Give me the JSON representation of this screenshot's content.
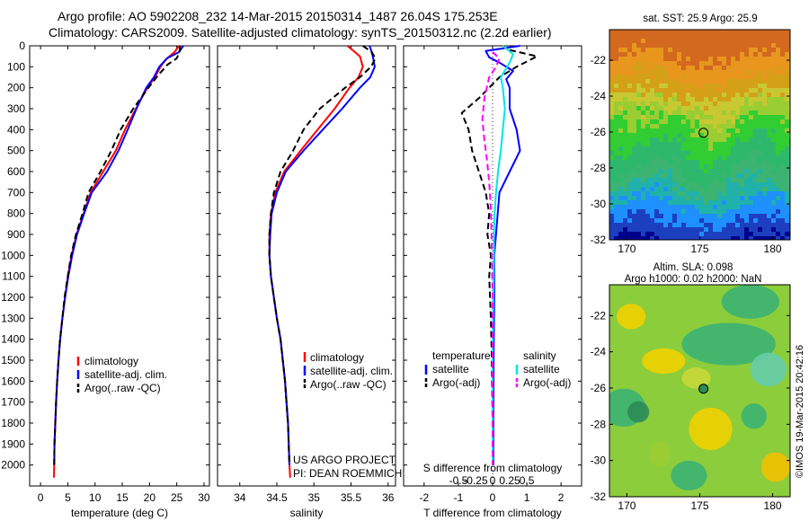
{
  "header": {
    "line1": "Argo profile: AO 5902208_232 14-Mar-2015 20150314_1487 26.04S 175.253E",
    "line2": "Climatology: CARS2009. Satellite-adjusted climatology: synTS_20150312.nc (2.2d earlier)"
  },
  "credit": "US ARGO PROJECT",
  "pi": "PI: DEAN ROEMMICH",
  "side_stamp": "©IMOS 19-Mar-2015 20:42:16",
  "colors": {
    "climatology": "#ff0000",
    "satellite": "#0000ff",
    "argo": "#000000",
    "t_diff_satellite": "#0000ff",
    "s_diff_satellite": "#00e5e5",
    "s_diff_argo": "#ff00ff"
  },
  "chart_data": [
    {
      "type": "line",
      "id": "temperature",
      "xlabel": "temperature (deg C)",
      "ylabel": "",
      "xlim": [
        -2,
        31
      ],
      "ylim": [
        2100,
        0
      ],
      "xticks": [
        0,
        5,
        10,
        15,
        20,
        25,
        30
      ],
      "yticks": [
        0,
        100,
        200,
        300,
        400,
        500,
        600,
        700,
        800,
        900,
        1000,
        1100,
        1200,
        1300,
        1400,
        1500,
        1600,
        1700,
        1800,
        1900,
        2000
      ],
      "legend": [
        "climatology",
        "satellite-adj. clim.",
        "Argo(..raw -QC)"
      ],
      "series": [
        {
          "name": "climatology",
          "style": "solid",
          "points": [
            [
              25.4,
              0
            ],
            [
              24.6,
              30
            ],
            [
              23.2,
              60
            ],
            [
              22.0,
              100
            ],
            [
              21.0,
              150
            ],
            [
              19.6,
              200
            ],
            [
              17.5,
              300
            ],
            [
              15.5,
              400
            ],
            [
              13.8,
              500
            ],
            [
              11.5,
              600
            ],
            [
              9.2,
              700
            ],
            [
              7.9,
              800
            ],
            [
              6.6,
              900
            ],
            [
              5.7,
              1000
            ],
            [
              5.0,
              1100
            ],
            [
              4.5,
              1200
            ],
            [
              4.0,
              1300
            ],
            [
              3.6,
              1400
            ],
            [
              3.3,
              1500
            ],
            [
              3.05,
              1600
            ],
            [
              2.85,
              1700
            ],
            [
              2.7,
              1800
            ],
            [
              2.55,
              1900
            ],
            [
              2.5,
              2000
            ],
            [
              2.45,
              2060
            ]
          ]
        },
        {
          "name": "satellite-adj. clim.",
          "style": "solid",
          "points": [
            [
              26.2,
              0
            ],
            [
              25.4,
              30
            ],
            [
              23.2,
              60
            ],
            [
              21.8,
              100
            ],
            [
              20.8,
              150
            ],
            [
              19.4,
              200
            ],
            [
              17.6,
              300
            ],
            [
              16.0,
              400
            ],
            [
              14.3,
              500
            ],
            [
              12.2,
              600
            ],
            [
              9.4,
              700
            ],
            [
              8.0,
              800
            ],
            [
              6.7,
              900
            ],
            [
              5.8,
              1000
            ],
            [
              5.1,
              1100
            ],
            [
              4.5,
              1200
            ],
            [
              4.0,
              1300
            ],
            [
              3.6,
              1400
            ],
            [
              3.3,
              1500
            ],
            [
              3.05,
              1600
            ],
            [
              2.85,
              1700
            ],
            [
              2.7,
              1800
            ],
            [
              2.55,
              1900
            ],
            [
              2.5,
              2000
            ]
          ]
        },
        {
          "name": "Argo(..raw -QC)",
          "style": "dashed",
          "points": [
            [
              25.6,
              0
            ],
            [
              25.5,
              30
            ],
            [
              25.0,
              60
            ],
            [
              23.3,
              90
            ],
            [
              21.6,
              140
            ],
            [
              19.8,
              200
            ],
            [
              17.0,
              300
            ],
            [
              14.7,
              400
            ],
            [
              13.0,
              500
            ],
            [
              11.0,
              600
            ],
            [
              8.8,
              700
            ],
            [
              7.7,
              800
            ],
            [
              6.5,
              900
            ],
            [
              5.6,
              1000
            ],
            [
              5.0,
              1100
            ],
            [
              4.4,
              1200
            ],
            [
              4.0,
              1300
            ],
            [
              3.6,
              1400
            ],
            [
              3.3,
              1500
            ],
            [
              3.05,
              1600
            ],
            [
              2.85,
              1700
            ],
            [
              2.7,
              1800
            ],
            [
              2.55,
              1900
            ],
            [
              2.5,
              2000
            ]
          ]
        }
      ]
    },
    {
      "type": "line",
      "id": "salinity",
      "xlabel": "salinity",
      "xlim": [
        33.7,
        36.1
      ],
      "ylim": [
        2100,
        0
      ],
      "xticks": [
        34,
        34.5,
        35,
        35.5,
        36
      ],
      "legend": [
        "climatology",
        "satellite-adj. clim.",
        "Argo(..raw -QC)"
      ],
      "series": [
        {
          "name": "climatology",
          "style": "solid",
          "points": [
            [
              35.45,
              0
            ],
            [
              35.52,
              20
            ],
            [
              35.62,
              50
            ],
            [
              35.66,
              100
            ],
            [
              35.6,
              150
            ],
            [
              35.48,
              200
            ],
            [
              35.28,
              300
            ],
            [
              35.05,
              400
            ],
            [
              34.82,
              500
            ],
            [
              34.6,
              600
            ],
            [
              34.48,
              700
            ],
            [
              34.42,
              800
            ],
            [
              34.4,
              900
            ],
            [
              34.4,
              1000
            ],
            [
              34.42,
              1100
            ],
            [
              34.46,
              1200
            ],
            [
              34.5,
              1300
            ],
            [
              34.55,
              1400
            ],
            [
              34.58,
              1500
            ],
            [
              34.61,
              1600
            ],
            [
              34.63,
              1700
            ],
            [
              34.65,
              1800
            ],
            [
              34.66,
              1900
            ],
            [
              34.67,
              2000
            ],
            [
              34.68,
              2060
            ]
          ]
        },
        {
          "name": "satellite-adj. clim.",
          "style": "solid",
          "points": [
            [
              35.75,
              0
            ],
            [
              35.78,
              30
            ],
            [
              35.8,
              60
            ],
            [
              35.82,
              100
            ],
            [
              35.76,
              150
            ],
            [
              35.62,
              200
            ],
            [
              35.38,
              300
            ],
            [
              35.12,
              400
            ],
            [
              34.86,
              500
            ],
            [
              34.62,
              600
            ],
            [
              34.5,
              700
            ],
            [
              34.43,
              800
            ],
            [
              34.41,
              900
            ],
            [
              34.4,
              1000
            ],
            [
              34.42,
              1100
            ],
            [
              34.46,
              1200
            ],
            [
              34.5,
              1300
            ],
            [
              34.55,
              1400
            ],
            [
              34.58,
              1500
            ],
            [
              34.61,
              1600
            ],
            [
              34.63,
              1700
            ],
            [
              34.65,
              1800
            ],
            [
              34.66,
              1900
            ],
            [
              34.67,
              2000
            ]
          ]
        },
        {
          "name": "Argo(..raw -QC)",
          "style": "dashed",
          "points": [
            [
              35.66,
              0
            ],
            [
              35.78,
              30
            ],
            [
              35.83,
              60
            ],
            [
              35.77,
              100
            ],
            [
              35.62,
              150
            ],
            [
              35.42,
              200
            ],
            [
              35.08,
              300
            ],
            [
              34.86,
              400
            ],
            [
              34.72,
              500
            ],
            [
              34.55,
              600
            ],
            [
              34.46,
              700
            ],
            [
              34.42,
              800
            ],
            [
              34.4,
              900
            ],
            [
              34.4,
              1000
            ],
            [
              34.42,
              1100
            ],
            [
              34.46,
              1200
            ],
            [
              34.5,
              1300
            ],
            [
              34.55,
              1400
            ],
            [
              34.58,
              1500
            ],
            [
              34.61,
              1600
            ],
            [
              34.63,
              1700
            ],
            [
              34.65,
              1800
            ],
            [
              34.66,
              1900
            ],
            [
              34.67,
              2000
            ]
          ]
        }
      ]
    },
    {
      "type": "line",
      "id": "differences",
      "title": "S difference from climatology",
      "xlabel": "T difference from climatology",
      "xlim": [
        -2.6,
        2.6
      ],
      "ylim": [
        2100,
        0
      ],
      "xticks": [
        -2,
        -1,
        0,
        1,
        2
      ],
      "xtick_labels": [
        "-2",
        "-1",
        "0",
        "1",
        "2"
      ],
      "xlim_top": [
        -1.3,
        1.3
      ],
      "xticks_top": [
        -0.5,
        -0.25,
        0,
        0.25,
        0.5
      ],
      "xtick_labels_top": [
        "-0.5",
        "-0.25",
        "0",
        "0.25",
        "0.5"
      ],
      "legend_groups": [
        {
          "heading": "temperature",
          "items": [
            "satellite",
            "Argo(-adj)"
          ]
        },
        {
          "heading": "salinity",
          "items": [
            "satellite",
            "Argo(-adj)"
          ]
        }
      ],
      "series": [
        {
          "name": "T satellite",
          "axis": "T",
          "style": "solid",
          "points": [
            [
              0.8,
              0
            ],
            [
              -0.2,
              25
            ],
            [
              -0.1,
              55
            ],
            [
              0.2,
              80
            ],
            [
              0.6,
              120
            ],
            [
              0.4,
              160
            ],
            [
              0.5,
              200
            ],
            [
              0.5,
              300
            ],
            [
              0.7,
              400
            ],
            [
              0.8,
              500
            ],
            [
              0.5,
              600
            ],
            [
              0.2,
              700
            ],
            [
              0.15,
              800
            ],
            [
              0.1,
              900
            ],
            [
              0.05,
              1000
            ],
            [
              0.05,
              1100
            ],
            [
              0.05,
              1200
            ],
            [
              0.03,
              1500
            ],
            [
              0.02,
              1800
            ],
            [
              0.02,
              2000
            ]
          ]
        },
        {
          "name": "T Argo(-adj)",
          "axis": "T",
          "style": "dashed",
          "points": [
            [
              0.5,
              20
            ],
            [
              1.3,
              50
            ],
            [
              0.7,
              100
            ],
            [
              0.2,
              150
            ],
            [
              -0.4,
              250
            ],
            [
              -0.9,
              320
            ],
            [
              -0.7,
              400
            ],
            [
              -0.6,
              500
            ],
            [
              -0.4,
              600
            ],
            [
              -0.2,
              700
            ],
            [
              -0.1,
              800
            ],
            [
              -0.15,
              900
            ],
            [
              -0.05,
              1000
            ],
            [
              -0.1,
              1100
            ],
            [
              -0.05,
              1300
            ],
            [
              -0.02,
              1500
            ],
            [
              0.0,
              1800
            ],
            [
              0.0,
              2000
            ]
          ]
        },
        {
          "name": "S satellite",
          "axis": "S",
          "style": "solid",
          "points": [
            [
              0.15,
              0
            ],
            [
              0.3,
              40
            ],
            [
              0.25,
              80
            ],
            [
              0.12,
              150
            ],
            [
              0.15,
              200
            ],
            [
              0.18,
              300
            ],
            [
              0.15,
              400
            ],
            [
              0.12,
              500
            ],
            [
              0.08,
              600
            ],
            [
              0.05,
              700
            ],
            [
              0.03,
              800
            ],
            [
              0.02,
              900
            ],
            [
              0.02,
              1000
            ],
            [
              0.01,
              1200
            ],
            [
              0.0,
              1500
            ],
            [
              0.0,
              1800
            ],
            [
              0.0,
              2000
            ]
          ]
        },
        {
          "name": "S Argo(-adj)",
          "axis": "S",
          "style": "dashed",
          "points": [
            [
              0.0,
              30
            ],
            [
              0.1,
              60
            ],
            [
              0.05,
              100
            ],
            [
              -0.05,
              150
            ],
            [
              -0.12,
              250
            ],
            [
              -0.15,
              350
            ],
            [
              -0.12,
              450
            ],
            [
              -0.08,
              550
            ],
            [
              -0.05,
              650
            ],
            [
              -0.03,
              750
            ],
            [
              -0.02,
              850
            ],
            [
              -0.01,
              1000
            ],
            [
              0.0,
              1200
            ],
            [
              0.0,
              1500
            ],
            [
              0.0,
              2000
            ]
          ]
        }
      ]
    },
    {
      "type": "heatmap",
      "id": "sst_map",
      "title": "sat. SST: 25.9 Argo: 25.9",
      "xticks": [
        170,
        175,
        180
      ],
      "yticks": [
        -22,
        -24,
        -26,
        -28,
        -30,
        -32
      ],
      "xlim": [
        168.8,
        181.2
      ],
      "ylim": [
        -32,
        -20.3
      ],
      "marker": {
        "lon": 175.253,
        "lat": -26.04
      }
    },
    {
      "type": "heatmap",
      "id": "sla_map",
      "title": "Altim. SLA: 0.098",
      "subtitle": "Argo h1000: 0.02 h2000: NaN",
      "xticks": [
        170,
        175,
        180
      ],
      "yticks": [
        -22,
        -24,
        -26,
        -28,
        -30,
        -32
      ],
      "xlim": [
        168.8,
        181.2
      ],
      "ylim": [
        -32,
        -20.3
      ],
      "marker": {
        "lon": 175.253,
        "lat": -26.04
      }
    }
  ]
}
